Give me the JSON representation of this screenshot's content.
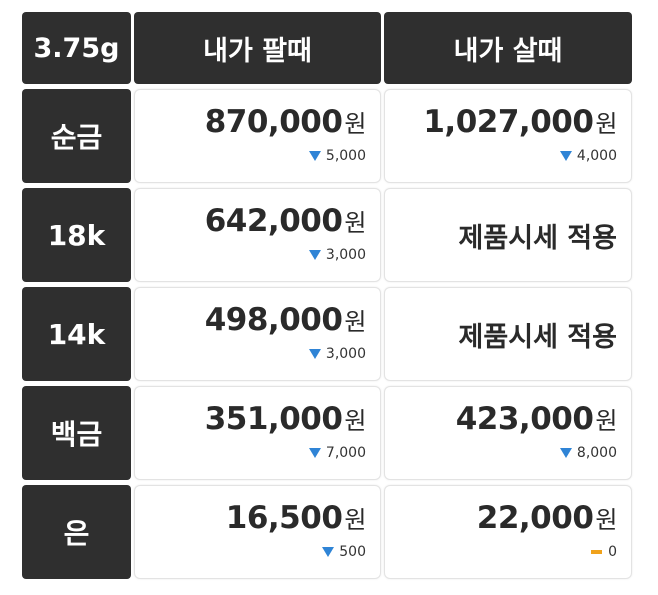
{
  "header": {
    "weight": "3.75g",
    "sell_label": "내가 팔때",
    "buy_label": "내가 살때"
  },
  "currency_unit": "원",
  "colors": {
    "down": "#2f84d6",
    "flat": "#f0a21b",
    "dark_cell": "#2f2f2f"
  },
  "rows": [
    {
      "label": "순금",
      "sell": {
        "price": "870,000",
        "change": "5,000",
        "direction": "down"
      },
      "buy": {
        "price": "1,027,000",
        "change": "4,000",
        "direction": "down"
      }
    },
    {
      "label": "18k",
      "sell": {
        "price": "642,000",
        "change": "3,000",
        "direction": "down"
      },
      "buy": {
        "note": "제품시세 적용"
      }
    },
    {
      "label": "14k",
      "sell": {
        "price": "498,000",
        "change": "3,000",
        "direction": "down"
      },
      "buy": {
        "note": "제품시세 적용"
      }
    },
    {
      "label": "백금",
      "sell": {
        "price": "351,000",
        "change": "7,000",
        "direction": "down"
      },
      "buy": {
        "price": "423,000",
        "change": "8,000",
        "direction": "down"
      }
    },
    {
      "label": "은",
      "sell": {
        "price": "16,500",
        "change": "500",
        "direction": "down"
      },
      "buy": {
        "price": "22,000",
        "change": "0",
        "direction": "flat"
      }
    }
  ]
}
